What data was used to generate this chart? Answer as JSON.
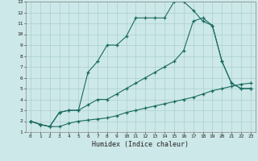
{
  "title": "",
  "xlabel": "Humidex (Indice chaleur)",
  "ylabel": "",
  "xlim": [
    -0.5,
    23.5
  ],
  "ylim": [
    1,
    13
  ],
  "xticks": [
    0,
    1,
    2,
    3,
    4,
    5,
    6,
    7,
    8,
    9,
    10,
    11,
    12,
    13,
    14,
    15,
    16,
    17,
    18,
    19,
    20,
    21,
    22,
    23
  ],
  "yticks": [
    1,
    2,
    3,
    4,
    5,
    6,
    7,
    8,
    9,
    10,
    11,
    12,
    13
  ],
  "background_color": "#cde8e8",
  "grid_color": "#aacfcf",
  "line_color": "#1a6b60",
  "line1_x": [
    0,
    1,
    2,
    3,
    4,
    5,
    6,
    7,
    8,
    9,
    10,
    11,
    12,
    13,
    14,
    15,
    16,
    17,
    18,
    19,
    20,
    21,
    22,
    23
  ],
  "line1_y": [
    2.0,
    1.7,
    1.5,
    1.5,
    1.8,
    2.0,
    2.1,
    2.2,
    2.3,
    2.5,
    2.8,
    3.0,
    3.2,
    3.4,
    3.6,
    3.8,
    4.0,
    4.2,
    4.5,
    4.8,
    5.0,
    5.2,
    5.4,
    5.5
  ],
  "line2_x": [
    0,
    1,
    2,
    3,
    4,
    5,
    6,
    7,
    8,
    9,
    10,
    11,
    12,
    13,
    14,
    15,
    16,
    17,
    18,
    19,
    20,
    21,
    22,
    23
  ],
  "line2_y": [
    2.0,
    1.7,
    1.5,
    2.8,
    3.0,
    3.0,
    6.5,
    7.5,
    9.0,
    9.0,
    9.8,
    11.5,
    11.5,
    11.5,
    11.5,
    13.0,
    13.0,
    12.2,
    11.2,
    10.8,
    7.5,
    5.5,
    5.0,
    5.0
  ],
  "line3_x": [
    0,
    1,
    2,
    3,
    4,
    5,
    6,
    7,
    8,
    9,
    10,
    11,
    12,
    13,
    14,
    15,
    16,
    17,
    18,
    19,
    20,
    21,
    22,
    23
  ],
  "line3_y": [
    2.0,
    1.7,
    1.5,
    2.8,
    3.0,
    3.0,
    3.5,
    4.0,
    4.0,
    4.5,
    5.0,
    5.5,
    6.0,
    6.5,
    7.0,
    7.5,
    8.5,
    11.2,
    11.5,
    10.8,
    7.5,
    5.5,
    5.0,
    5.0
  ]
}
